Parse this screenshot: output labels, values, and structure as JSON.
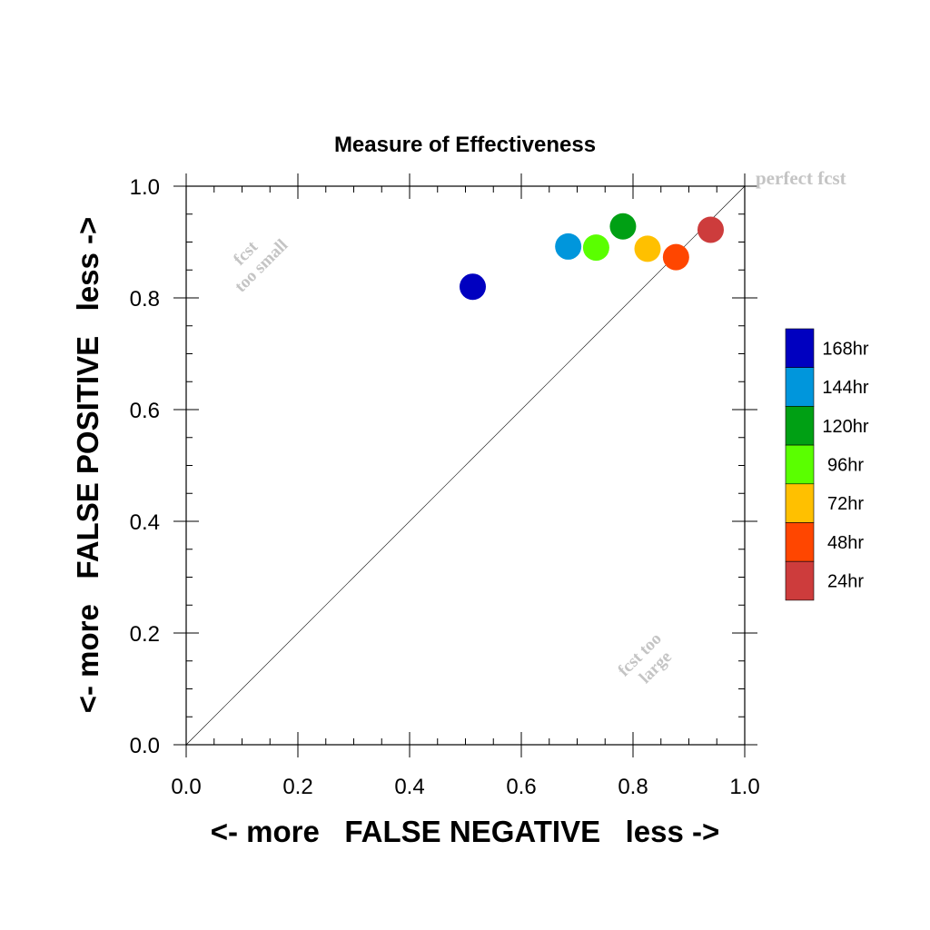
{
  "chart_data": {
    "type": "scatter",
    "title": "Measure of Effectiveness",
    "xlabel": "<- more   FALSE NEGATIVE   less ->",
    "ylabel": "<- more   FALSE POSITIVE   less ->",
    "xlim": [
      0.0,
      1.0
    ],
    "ylim": [
      0.0,
      1.0
    ],
    "xticks": [
      "0.0",
      "0.2",
      "0.4",
      "0.6",
      "0.8",
      "1.0"
    ],
    "yticks": [
      "0.0",
      "0.2",
      "0.4",
      "0.6",
      "0.8",
      "1.0"
    ],
    "grid": false,
    "diagonal_reference": true,
    "legend_placement": "right",
    "annotations": {
      "perfect": "perfect fcst",
      "small_line1": "fcst",
      "small_line2": "too small",
      "large_line1": "fcst too",
      "large_line2": "large"
    },
    "series": [
      {
        "name": "168hr",
        "color": "#0000c0",
        "x": 0.513,
        "y": 0.82
      },
      {
        "name": "144hr",
        "color": "#0096dc",
        "x": 0.684,
        "y": 0.892
      },
      {
        "name": "120hr",
        "color": "#00a014",
        "x": 0.782,
        "y": 0.928
      },
      {
        "name": "96hr",
        "color": "#5aff00",
        "x": 0.734,
        "y": 0.89
      },
      {
        "name": "72hr",
        "color": "#ffc000",
        "x": 0.826,
        "y": 0.888
      },
      {
        "name": "48hr",
        "color": "#ff4600",
        "x": 0.877,
        "y": 0.873
      },
      {
        "name": "24hr",
        "color": "#cd3c3c",
        "x": 0.939,
        "y": 0.922
      }
    ]
  }
}
